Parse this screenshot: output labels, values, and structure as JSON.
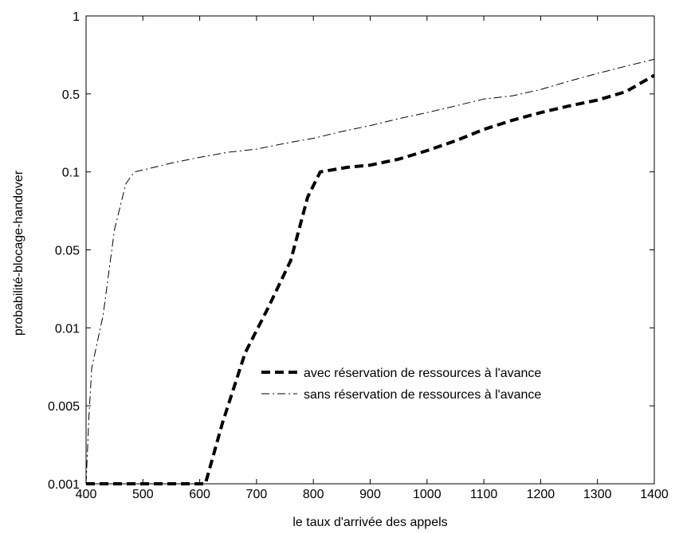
{
  "chart_data": {
    "type": "line",
    "title": "",
    "xlabel": "le taux d'arrivée des appels",
    "ylabel": "probabilité-blocage-handover",
    "xlim": [
      400,
      1400
    ],
    "x_ticks": [
      400,
      500,
      600,
      700,
      800,
      900,
      1000,
      1100,
      1200,
      1300,
      1400
    ],
    "y_ticks": [
      {
        "value": 0.001,
        "label": "0.001"
      },
      {
        "value": 0.005,
        "label": "0.005"
      },
      {
        "value": 0.01,
        "label": "0.01"
      },
      {
        "value": 0.05,
        "label": "0.05"
      },
      {
        "value": 0.1,
        "label": "0.1"
      },
      {
        "value": 0.5,
        "label": "0.5"
      },
      {
        "value": 1,
        "label": "1"
      }
    ],
    "y_scale": "piecewise-log",
    "grid": false,
    "legend": "inside-lower-right",
    "series": [
      {
        "name": "avec réservation de ressources  à l'avance",
        "style": "thick-dashed",
        "color": "#000000",
        "points": [
          [
            400,
            0.001
          ],
          [
            500,
            0.001
          ],
          [
            600,
            0.001
          ],
          [
            610,
            0.001
          ],
          [
            640,
            0.0035
          ],
          [
            680,
            0.008
          ],
          [
            720,
            0.015
          ],
          [
            760,
            0.04
          ],
          [
            790,
            0.08
          ],
          [
            812,
            0.1
          ],
          [
            860,
            0.11
          ],
          [
            900,
            0.115
          ],
          [
            950,
            0.13
          ],
          [
            1000,
            0.155
          ],
          [
            1050,
            0.19
          ],
          [
            1100,
            0.24
          ],
          [
            1150,
            0.29
          ],
          [
            1200,
            0.34
          ],
          [
            1250,
            0.39
          ],
          [
            1300,
            0.44
          ],
          [
            1350,
            0.51
          ],
          [
            1400,
            0.59
          ]
        ]
      },
      {
        "name": "sans réservation de ressources  à l'avance",
        "style": "dash-dot",
        "color": "#000000",
        "points": [
          [
            400,
            0.001
          ],
          [
            405,
            0.004
          ],
          [
            410,
            0.007
          ],
          [
            430,
            0.013
          ],
          [
            450,
            0.06
          ],
          [
            470,
            0.09
          ],
          [
            485,
            0.1
          ],
          [
            520,
            0.11
          ],
          [
            550,
            0.12
          ],
          [
            600,
            0.135
          ],
          [
            650,
            0.15
          ],
          [
            700,
            0.16
          ],
          [
            750,
            0.18
          ],
          [
            800,
            0.2
          ],
          [
            850,
            0.23
          ],
          [
            900,
            0.26
          ],
          [
            950,
            0.3
          ],
          [
            1000,
            0.34
          ],
          [
            1050,
            0.39
          ],
          [
            1100,
            0.45
          ],
          [
            1150,
            0.48
          ],
          [
            1200,
            0.52
          ],
          [
            1250,
            0.56
          ],
          [
            1300,
            0.6
          ],
          [
            1350,
            0.64
          ],
          [
            1400,
            0.68
          ]
        ]
      }
    ]
  }
}
